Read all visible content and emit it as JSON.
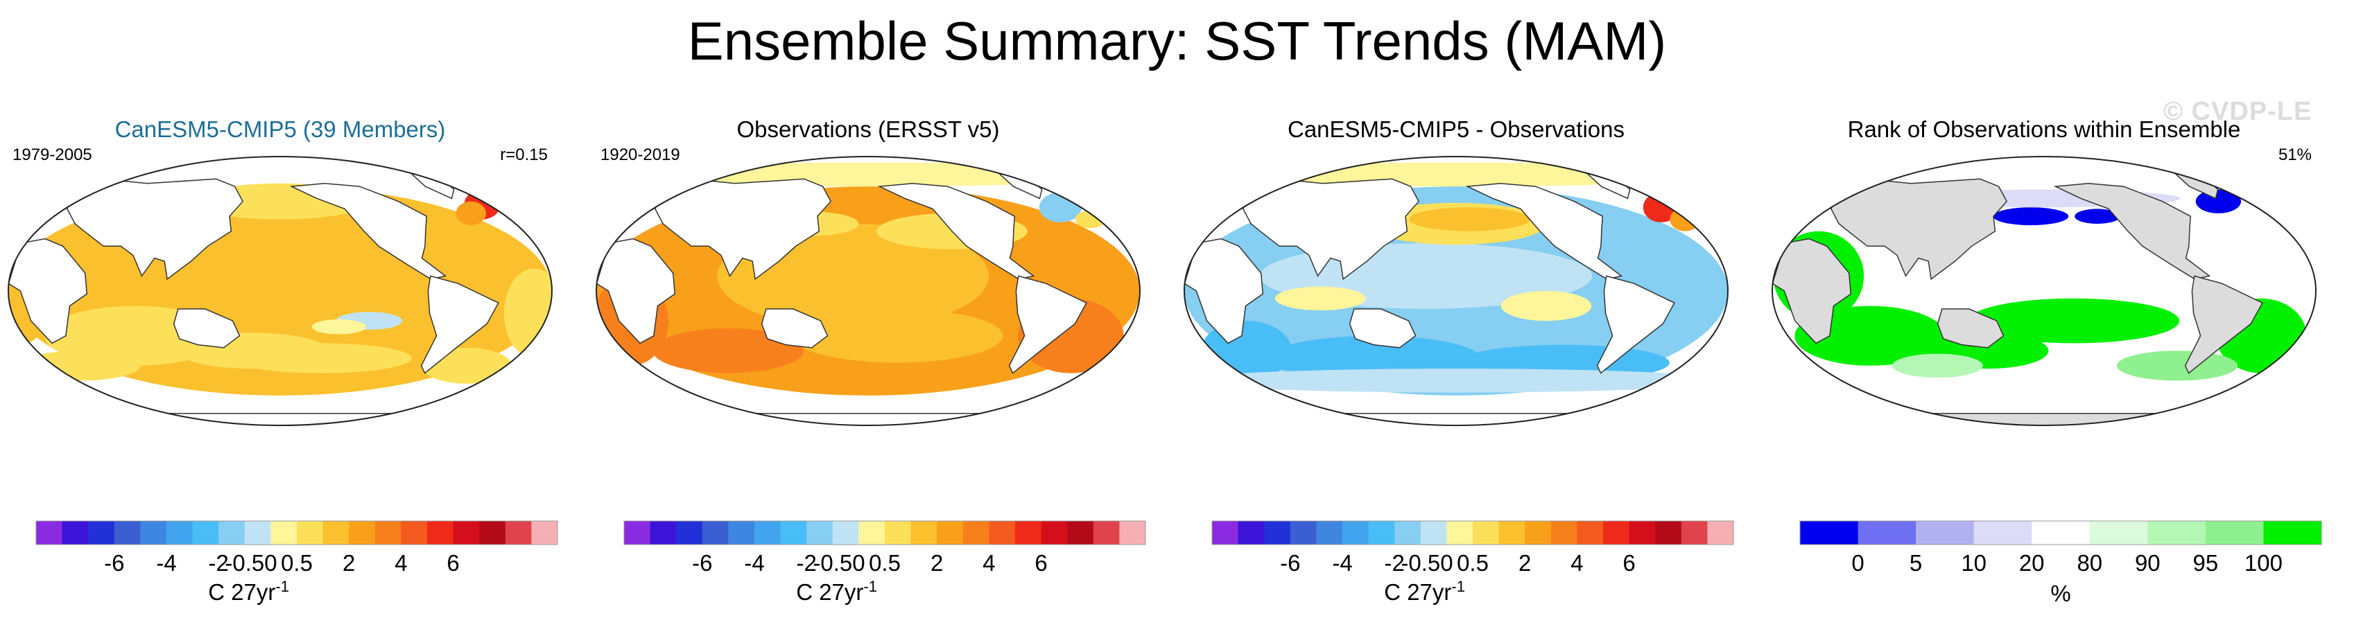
{
  "figure": {
    "title": "Ensemble Summary: SST Trends (MAM)",
    "watermark": "© CVDP-LE"
  },
  "colors": {
    "sst_scale": [
      "#8a2be2",
      "#3b14d8",
      "#2230d8",
      "#3b5fd2",
      "#3e86e0",
      "#42a4ee",
      "#49bdf6",
      "#86cef2",
      "#bfe3f5",
      "#fff59a",
      "#fde05a",
      "#fbc02d",
      "#f9a01b",
      "#f7801d",
      "#f55a1e",
      "#f02a1a",
      "#d40e1a",
      "#b30a19",
      "#e0434c",
      "#f6b0b5"
    ],
    "rank_scale": [
      "#0000ee",
      "#6f6ff2",
      "#b2b2f2",
      "#dcdcf8",
      "#ffffff",
      "#dcfadc",
      "#b4f7b4",
      "#8ef08e",
      "#00f000"
    ],
    "land": "#ffffff",
    "rank_land": "#dcdcdc"
  },
  "panels": [
    {
      "title": "CanESM5-CMIP5 (39 Members)",
      "title_color": "#1c6e96",
      "left_label": "1979-2005",
      "right_label": "r=0.15",
      "scheme": "model"
    },
    {
      "title": "Observations (ERSST v5)",
      "title_color": "#000000",
      "left_label": "1920-2019",
      "right_label": "",
      "scheme": "obs"
    },
    {
      "title": "CanESM5-CMIP5 - Observations",
      "title_color": "#000000",
      "left_label": "",
      "right_label": "",
      "scheme": "diff"
    },
    {
      "title": "Rank of Observations within Ensemble",
      "title_color": "#000000",
      "left_label": "",
      "right_label": "51%",
      "scheme": "rank"
    }
  ],
  "chart_data": [
    {
      "type": "heatmap",
      "title": "CanESM5-CMIP5 (39 Members)",
      "period": "1979-2005",
      "pattern_correlation": "r=0.15",
      "colorbar_ticks": [
        "-6",
        "-4",
        "-2",
        "-0.5",
        "0",
        "0.5",
        "2",
        "4",
        "6"
      ],
      "colorbar_units": "C 27yr",
      "units_superscript": "-1",
      "dominant_range": [
        0.5,
        2
      ]
    },
    {
      "type": "heatmap",
      "title": "Observations (ERSST v5)",
      "period": "1920-2019",
      "colorbar_ticks": [
        "-6",
        "-4",
        "-2",
        "-0.5",
        "0",
        "0.5",
        "2",
        "4",
        "6"
      ],
      "colorbar_units": "C 27yr",
      "units_superscript": "-1",
      "dominant_range": [
        0.5,
        2
      ]
    },
    {
      "type": "heatmap",
      "title": "CanESM5-CMIP5 - Observations",
      "colorbar_ticks": [
        "-6",
        "-4",
        "-2",
        "-0.5",
        "0",
        "0.5",
        "2",
        "4",
        "6"
      ],
      "colorbar_units": "C 27yr",
      "units_superscript": "-1",
      "dominant_range": [
        -2,
        -0.5
      ]
    },
    {
      "type": "heatmap",
      "title": "Rank of Observations within Ensemble",
      "summary": "51%",
      "colorbar_ticks": [
        "0",
        "5",
        "10",
        "20",
        "80",
        "90",
        "95",
        "100"
      ],
      "colorbar_units": "%",
      "colorbar_levels": [
        0,
        5,
        10,
        20,
        80,
        90,
        95,
        100
      ]
    }
  ]
}
